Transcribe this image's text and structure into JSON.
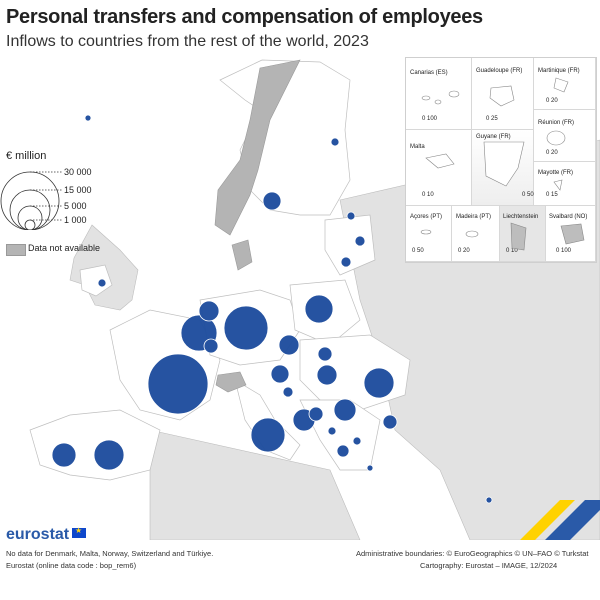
{
  "title": "Personal transfers and compensation of employees",
  "subtitle": "Inflows to countries from the rest of the world, 2023",
  "legend": {
    "unit": "€ million",
    "sizes": [
      "30 000",
      "15 000",
      "5 000",
      "1 000"
    ],
    "na_label": "Data not available"
  },
  "insets": {
    "canarias": "Canarias (ES)",
    "guadeloupe": "Guadeloupe (FR)",
    "martinique": "Martinique (FR)",
    "guyane": "Guyane (FR)",
    "reunion": "Réunion (FR)",
    "malta": "Malta",
    "mayotte": "Mayotte (FR)",
    "acores": "Açores (PT)",
    "madeira": "Madeira (PT)",
    "liechtenstein": "Liechtenstein",
    "svalbard": "Svalbard (NO)",
    "scale_canarias": "0  100",
    "scale_guadeloupe": "0  25",
    "scale_martinique": "0  20",
    "scale_guyane": "0  50",
    "scale_reunion": "0  20",
    "scale_malta": "0  10",
    "scale_mayotte": "0  15",
    "scale_acores": "0  50",
    "scale_madeira": "0  20",
    "scale_liechtenstein": "0  10",
    "scale_svalbard": "0 100"
  },
  "colors": {
    "bubble": "#1f4e9e",
    "land": "#ffffff",
    "na": "#b4b4b4",
    "sea": "#ffffff",
    "nonEU": "#e2e2e2"
  },
  "footer": {
    "logo": "eurostat",
    "note": "No data for Denmark, Malta, Norway, Switzerland and Türkiye.",
    "source": "Eurostat (online data code : bop_rem6)",
    "boundaries": "Administrative boundaries: © EuroGeographics © UN–FAO © Turkstat",
    "cartography": "Cartography: Eurostat – IMAGE, 12/2024"
  }
}
